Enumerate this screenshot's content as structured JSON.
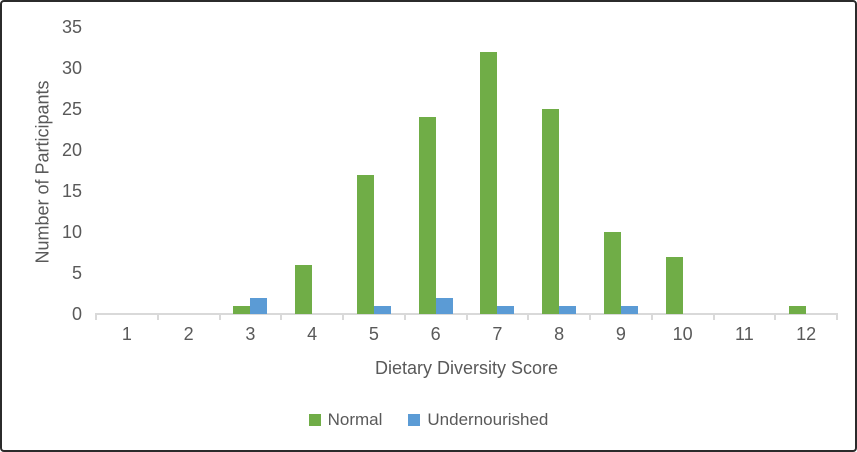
{
  "chart_data": {
    "type": "bar",
    "title": "",
    "xlabel": "Dietary Diversity Score",
    "ylabel": "Number of Participants",
    "categories": [
      "1",
      "2",
      "3",
      "4",
      "5",
      "6",
      "7",
      "8",
      "9",
      "10",
      "11",
      "12"
    ],
    "series": [
      {
        "name": "Normal",
        "color": "#70AD47",
        "values": [
          0,
          0,
          1,
          6,
          17,
          24,
          32,
          25,
          10,
          7,
          0,
          1
        ]
      },
      {
        "name": "Undernourished",
        "color": "#5B9BD5",
        "values": [
          0,
          0,
          2,
          0,
          1,
          2,
          1,
          1,
          1,
          0,
          0,
          0
        ]
      }
    ],
    "ylim": [
      0,
      35
    ],
    "ytick_step": 5,
    "yticks": [
      0,
      5,
      10,
      15,
      20,
      25,
      30,
      35
    ],
    "grid": false,
    "legend_position": "bottom",
    "colors": {
      "axis_line": "#D9D9D9",
      "text": "#595959",
      "frame_border": "#2B2B2B",
      "background": "#FFFFFF"
    }
  }
}
